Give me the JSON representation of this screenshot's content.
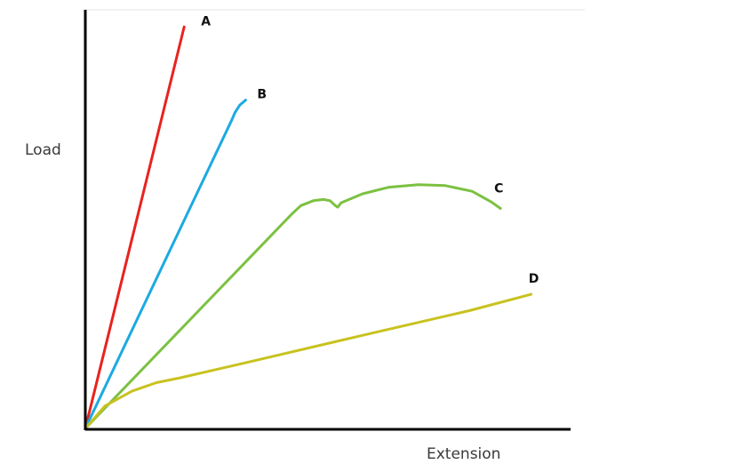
{
  "chart_data": {
    "type": "line",
    "xlabel": "Extension",
    "ylabel": "Load",
    "xlim": [
      0,
      100
    ],
    "ylim": [
      0,
      100
    ],
    "grid": false,
    "legend": "none",
    "series": [
      {
        "name": "A",
        "color": "#e8231f",
        "points": [
          [
            0,
            0
          ],
          [
            20.6,
            98.2
          ]
        ]
      },
      {
        "name": "B",
        "color": "#1ca9e3",
        "points": [
          [
            0,
            0
          ],
          [
            30.5,
            75.4
          ],
          [
            31.2,
            77.3
          ],
          [
            32.2,
            79.1
          ],
          [
            33.0,
            79.9
          ],
          [
            33.4,
            80.3
          ]
        ]
      },
      {
        "name": "C",
        "color": "#7cc142",
        "points": [
          [
            0,
            0
          ],
          [
            42.9,
            52.3
          ],
          [
            44.9,
            54.5
          ],
          [
            47.5,
            55.7
          ],
          [
            49.6,
            56.0
          ],
          [
            51.0,
            55.7
          ],
          [
            52.1,
            54.5
          ],
          [
            52.6,
            54.1
          ],
          [
            53.3,
            55.2
          ],
          [
            57.8,
            57.4
          ],
          [
            63.3,
            59.0
          ],
          [
            69.4,
            59.6
          ],
          [
            75.0,
            59.4
          ],
          [
            80.6,
            58.0
          ],
          [
            84.6,
            55.4
          ],
          [
            86.5,
            53.8
          ]
        ]
      },
      {
        "name": "D",
        "color": "#c8c21f",
        "points": [
          [
            0,
            0
          ],
          [
            4.1,
            5.5
          ],
          [
            9.7,
            9.1
          ],
          [
            14.8,
            11.2
          ],
          [
            19.8,
            12.4
          ],
          [
            35.0,
            16.5
          ],
          [
            60.0,
            23.4
          ],
          [
            80.0,
            28.8
          ],
          [
            92.9,
            32.8
          ]
        ]
      }
    ]
  }
}
